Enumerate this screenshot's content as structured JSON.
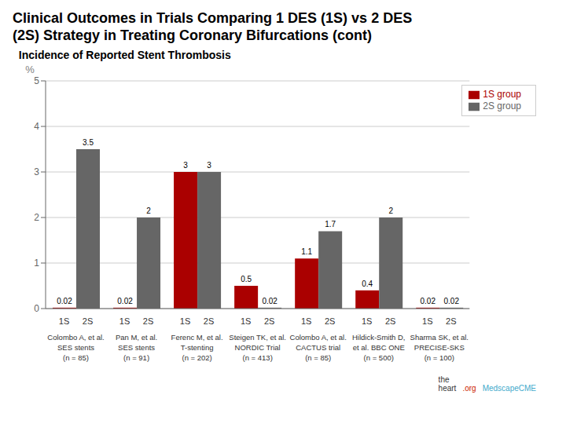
{
  "chart_data": {
    "type": "bar",
    "title": "Clinical Outcomes in Trials Comparing 1 DES (1S) vs 2 DES\n(2S) Strategy in Treating Coronary Bifurcations (cont)",
    "subtitle": "  Incidence of Reported Stent Thrombosis",
    "ylabel": "%",
    "categories": [
      "Colombo A, et al.\nSES stents\n(n = 85)",
      "Pan M, et al.\nSES stents\n(n = 91)",
      "Ferenc M, et al.\nT-stenting\n(n = 202)",
      "Steigen TK, et al.\nNORDIC Trial\n(n = 413)",
      "Colombo A, et al.\nCACTUS trial\n(n = 85)",
      "Hildick-Smith D,\net al. BBC ONE\n(n = 500)",
      "Sharma SK, et al.\nPRECISE-SKS\n(n = 100)"
    ],
    "bar_tick_labels": [
      "1S",
      "2S"
    ],
    "series": [
      {
        "name": "1S group",
        "color": "#aa0000",
        "values": [
          0.02,
          0.02,
          3.0,
          0.5,
          1.1,
          0.4,
          0.02
        ]
      },
      {
        "name": "2S group",
        "color": "#666666",
        "values": [
          3.5,
          2.0,
          3.0,
          0.02,
          1.7,
          2.0,
          0.02
        ]
      }
    ],
    "ylim": [
      0,
      5
    ],
    "yticks": [
      0,
      1,
      2,
      3,
      4,
      5
    ],
    "grid": true,
    "legend": "upper right",
    "data_labels": true,
    "annotations": [
      {
        "text": "the\nheart",
        "color": "#333333"
      },
      {
        "text": ".org",
        "color": "#cc2200"
      },
      {
        "text": "MedscapeCME",
        "color": "#44aacc"
      }
    ]
  }
}
